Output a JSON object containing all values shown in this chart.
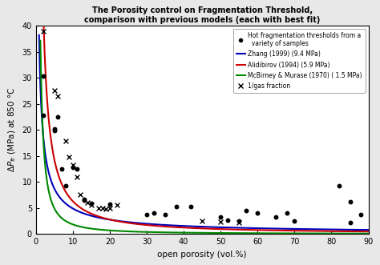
{
  "title_line1": "The Porosity control on Fragmentation Threshold,",
  "title_line2": "comparison with previous models (each with best fit)",
  "xlabel": "open porosity (vol.%)",
  "ylabel": "$\\Delta P_{fr}$ (MPa) at 850 °C",
  "xlim": [
    0,
    90
  ],
  "ylim": [
    0,
    40
  ],
  "xticks": [
    0,
    10,
    20,
    30,
    40,
    50,
    60,
    70,
    80,
    90
  ],
  "yticks": [
    0,
    5,
    10,
    15,
    20,
    25,
    30,
    35,
    40
  ],
  "dot_data": [
    [
      2,
      30.3
    ],
    [
      2,
      22.8
    ],
    [
      5,
      20.2
    ],
    [
      5,
      19.8
    ],
    [
      6,
      22.5
    ],
    [
      7,
      12.5
    ],
    [
      8,
      9.2
    ],
    [
      10,
      12.8
    ],
    [
      11,
      12.5
    ],
    [
      13,
      6.7
    ],
    [
      13,
      6.5
    ],
    [
      15,
      5.9
    ],
    [
      20,
      5.8
    ],
    [
      30,
      3.8
    ],
    [
      32,
      4.0
    ],
    [
      35,
      3.8
    ],
    [
      38,
      5.3
    ],
    [
      42,
      5.2
    ],
    [
      50,
      3.3
    ],
    [
      52,
      2.7
    ],
    [
      55,
      2.5
    ],
    [
      57,
      4.5
    ],
    [
      60,
      4.1
    ],
    [
      65,
      3.3
    ],
    [
      68,
      4.0
    ],
    [
      70,
      2.5
    ],
    [
      82,
      9.3
    ],
    [
      85,
      6.2
    ],
    [
      85,
      2.2
    ],
    [
      88,
      3.7
    ]
  ],
  "cross_data": [
    [
      2,
      39.0
    ],
    [
      5,
      27.5
    ],
    [
      6,
      26.5
    ],
    [
      8,
      17.8
    ],
    [
      9,
      14.8
    ],
    [
      10,
      13.2
    ],
    [
      11,
      11.0
    ],
    [
      12,
      7.5
    ],
    [
      14,
      6.1
    ],
    [
      15,
      5.5
    ],
    [
      17,
      5.0
    ],
    [
      18,
      4.9
    ],
    [
      19,
      4.8
    ],
    [
      20,
      5.0
    ],
    [
      22,
      5.5
    ],
    [
      45,
      2.5
    ],
    [
      50,
      2.4
    ],
    [
      55,
      2.2
    ]
  ],
  "zhang_color": "#0000bb",
  "alidibirov_color": "#cc0000",
  "mcbirney_color": "#008800",
  "dot_color": "black",
  "cross_color": "black",
  "background_color": "#e8e8e8",
  "plot_bg_color": "#ffffff",
  "legend_dot_label": "Hot fragmentation thresholds from a\n  variety of samples",
  "legend_zhang_label": "Zhang (1999) (9.4 MPa)",
  "legend_alidibirov_label": "Alidibirov (1994) (5.9 MPa)",
  "legend_mcbirney_label": "McBirney & Murase (1970) ( 1.5 MPa)",
  "legend_cross_label": "x  1/gas fraction",
  "zhang_C": 33.0,
  "zhang_n": 0.83,
  "alidibirov_C": 95.0,
  "alidibirov_n": 1.18,
  "mcbirney_C": 48.0,
  "mcbirney_n": 1.42
}
